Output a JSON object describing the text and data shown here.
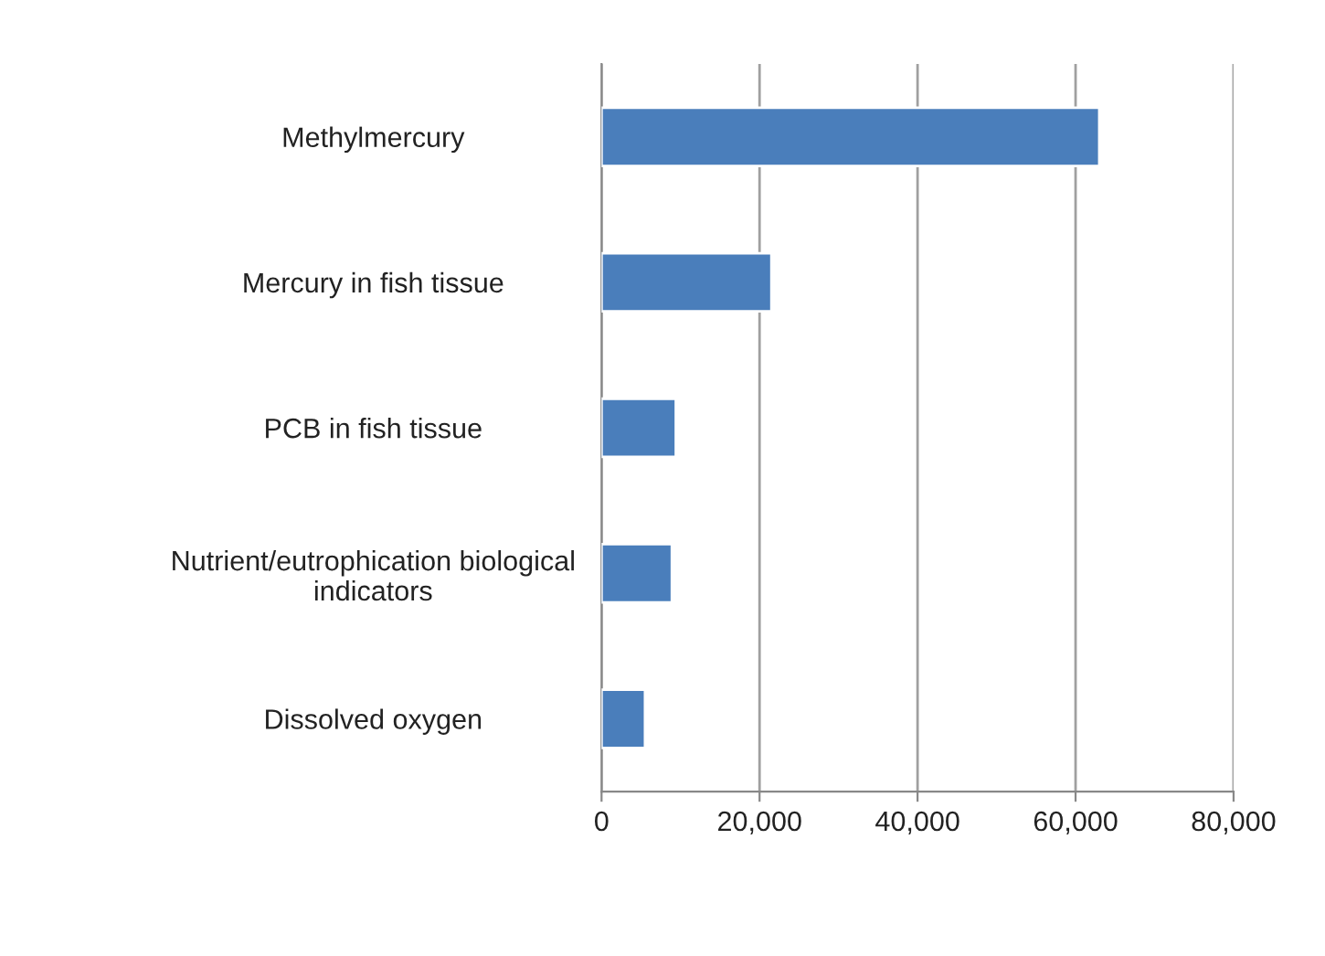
{
  "chart_data": {
    "type": "bar",
    "orientation": "horizontal",
    "categories": [
      "Methylmercury",
      "Mercury in fish tissue",
      "PCB in fish tissue",
      "Nutrient/eutrophication biological\nindicators",
      "Dissolved oxygen"
    ],
    "values": [
      63000,
      21500,
      9400,
      8900,
      5500
    ],
    "color": "#4a7ebb",
    "xlim": [
      0,
      80000
    ],
    "xticks": [
      {
        "value": 0,
        "label": "0"
      },
      {
        "value": 20000,
        "label": "20,000"
      },
      {
        "value": 40000,
        "label": "40,000"
      },
      {
        "value": 60000,
        "label": "60,000"
      },
      {
        "value": 80000,
        "label": "80,000"
      }
    ],
    "grid": "x",
    "legend": false
  }
}
